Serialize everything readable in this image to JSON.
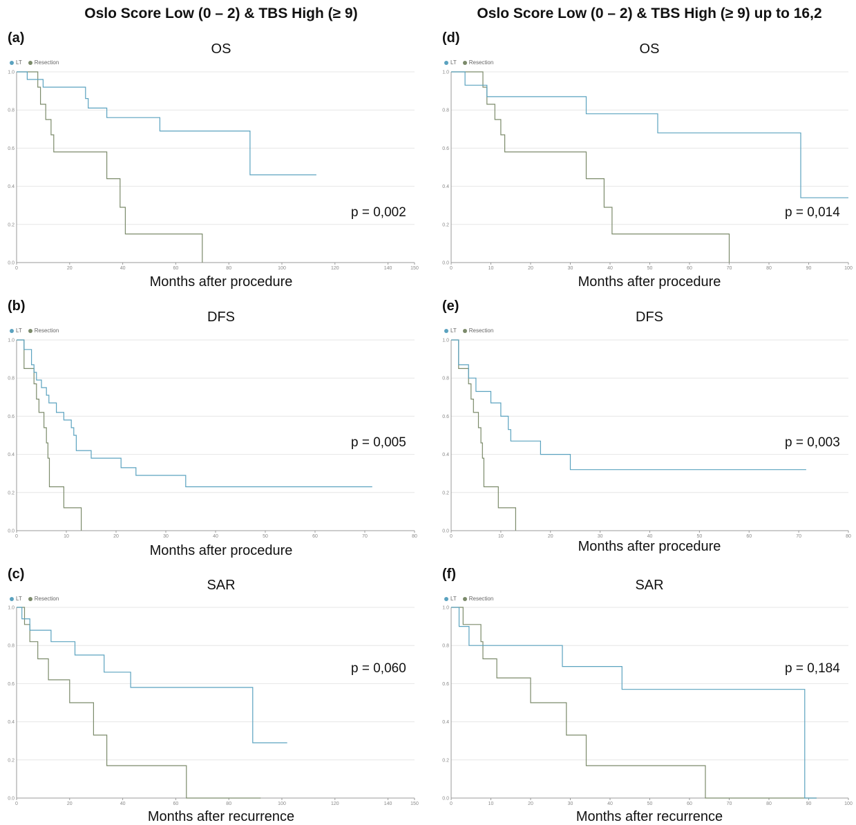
{
  "column_titles": [
    "Oslo Score Low (0 – 2) & TBS High (≥ 9)",
    "Oslo Score Low (0 – 2) & TBS High (≥ 9) up to 16,2"
  ],
  "legend": {
    "lt": "LT",
    "resection": "Resection"
  },
  "colors": {
    "lt": "#5aa2bf",
    "resection": "#7b8a6a",
    "grid": "#e6e6e6",
    "axis": "#999999"
  },
  "chart_data": [
    {
      "panel": "(a)",
      "title": "OS",
      "type": "line",
      "xlabel": "Months after procedure",
      "p_value": "p = 0,002",
      "xlim": [
        0,
        150
      ],
      "ylim": [
        0,
        1
      ],
      "xticks": [
        0,
        20,
        40,
        60,
        80,
        100,
        120,
        140,
        150
      ],
      "yticks": [
        0.0,
        0.2,
        0.4,
        0.6,
        0.8,
        1.0
      ],
      "series": [
        {
          "name": "LT",
          "steps": [
            [
              0,
              1.0
            ],
            [
              4,
              0.96
            ],
            [
              10,
              0.92
            ],
            [
              26,
              0.86
            ],
            [
              27,
              0.81
            ],
            [
              34,
              0.76
            ],
            [
              54,
              0.69
            ],
            [
              88,
              0.46
            ],
            [
              113,
              0.46
            ]
          ]
        },
        {
          "name": "Resection",
          "steps": [
            [
              0,
              1.0
            ],
            [
              8,
              0.92
            ],
            [
              9,
              0.83
            ],
            [
              11,
              0.75
            ],
            [
              13,
              0.67
            ],
            [
              14,
              0.58
            ],
            [
              34,
              0.44
            ],
            [
              39,
              0.29
            ],
            [
              41,
              0.15
            ],
            [
              70,
              0.0
            ]
          ]
        }
      ]
    },
    {
      "panel": "(b)",
      "title": "DFS",
      "type": "line",
      "xlabel": "Months after procedure",
      "p_value": "p = 0,005",
      "xlim": [
        0,
        80
      ],
      "ylim": [
        0,
        1
      ],
      "xticks": [
        0,
        10,
        20,
        30,
        40,
        50,
        60,
        70,
        80
      ],
      "yticks": [
        0.0,
        0.2,
        0.4,
        0.6,
        0.8,
        1.0
      ],
      "series": [
        {
          "name": "LT",
          "steps": [
            [
              0,
              1.0
            ],
            [
              1.5,
              0.95
            ],
            [
              3,
              0.87
            ],
            [
              3.5,
              0.83
            ],
            [
              4,
              0.79
            ],
            [
              5,
              0.75
            ],
            [
              6,
              0.71
            ],
            [
              6.5,
              0.67
            ],
            [
              8,
              0.62
            ],
            [
              9.5,
              0.58
            ],
            [
              11,
              0.54
            ],
            [
              11.5,
              0.5
            ],
            [
              12,
              0.42
            ],
            [
              15,
              0.38
            ],
            [
              21,
              0.33
            ],
            [
              24,
              0.29
            ],
            [
              34,
              0.23
            ],
            [
              71.5,
              0.23
            ]
          ]
        },
        {
          "name": "Resection",
          "steps": [
            [
              0,
              1.0
            ],
            [
              1.5,
              0.85
            ],
            [
              3.5,
              0.77
            ],
            [
              4,
              0.69
            ],
            [
              4.5,
              0.62
            ],
            [
              5.5,
              0.54
            ],
            [
              6,
              0.46
            ],
            [
              6.3,
              0.38
            ],
            [
              6.6,
              0.23
            ],
            [
              9.5,
              0.12
            ],
            [
              13,
              0.0
            ]
          ]
        }
      ]
    },
    {
      "panel": "(c)",
      "title": "SAR",
      "type": "line",
      "xlabel": "Months after recurrence",
      "p_value": "p = 0,060",
      "xlim": [
        0,
        150
      ],
      "ylim": [
        0,
        1
      ],
      "xticks": [
        0,
        20,
        40,
        60,
        80,
        100,
        120,
        140,
        150
      ],
      "yticks": [
        0.0,
        0.2,
        0.4,
        0.6,
        0.8,
        1.0
      ],
      "series": [
        {
          "name": "LT",
          "steps": [
            [
              0,
              1.0
            ],
            [
              2,
              0.94
            ],
            [
              5,
              0.88
            ],
            [
              13,
              0.82
            ],
            [
              22,
              0.75
            ],
            [
              33,
              0.66
            ],
            [
              43,
              0.58
            ],
            [
              89,
              0.29
            ],
            [
              102,
              0.29
            ]
          ]
        },
        {
          "name": "Resection",
          "steps": [
            [
              0,
              1.0
            ],
            [
              3,
              0.91
            ],
            [
              5,
              0.82
            ],
            [
              8,
              0.73
            ],
            [
              12,
              0.62
            ],
            [
              20,
              0.5
            ],
            [
              29,
              0.33
            ],
            [
              34,
              0.17
            ],
            [
              64,
              0.0
            ],
            [
              92,
              0.0
            ]
          ]
        }
      ]
    },
    {
      "panel": "(d)",
      "title": "OS",
      "type": "line",
      "xlabel": "Months after procedure",
      "p_value": "p = 0,014",
      "xlim": [
        0,
        100
      ],
      "ylim": [
        0,
        1
      ],
      "xticks": [
        0,
        10,
        20,
        30,
        40,
        50,
        60,
        70,
        80,
        90,
        100
      ],
      "yticks": [
        0.0,
        0.2,
        0.4,
        0.6,
        0.8,
        1.0
      ],
      "series": [
        {
          "name": "LT",
          "steps": [
            [
              0,
              1.0
            ],
            [
              3.5,
              0.93
            ],
            [
              9,
              0.87
            ],
            [
              34,
              0.78
            ],
            [
              52,
              0.68
            ],
            [
              88,
              0.34
            ],
            [
              100,
              0.34
            ]
          ]
        },
        {
          "name": "Resection",
          "steps": [
            [
              0,
              1.0
            ],
            [
              8,
              0.92
            ],
            [
              9,
              0.83
            ],
            [
              11,
              0.75
            ],
            [
              12.5,
              0.67
            ],
            [
              13.5,
              0.58
            ],
            [
              34,
              0.44
            ],
            [
              38.5,
              0.29
            ],
            [
              40.5,
              0.15
            ],
            [
              70,
              0.0
            ]
          ]
        }
      ]
    },
    {
      "panel": "(e)",
      "title": "DFS",
      "type": "line",
      "xlabel": "Months after procedure",
      "p_value": "p = 0,003",
      "xlim": [
        0,
        80
      ],
      "ylim": [
        0,
        1
      ],
      "xticks": [
        0,
        10,
        20,
        30,
        40,
        50,
        60,
        70,
        80
      ],
      "yticks": [
        0.0,
        0.2,
        0.4,
        0.6,
        0.8,
        1.0
      ],
      "series": [
        {
          "name": "LT",
          "steps": [
            [
              0,
              1.0
            ],
            [
              1.5,
              0.87
            ],
            [
              3.5,
              0.8
            ],
            [
              5,
              0.73
            ],
            [
              8,
              0.67
            ],
            [
              10,
              0.6
            ],
            [
              11.5,
              0.53
            ],
            [
              12,
              0.47
            ],
            [
              18,
              0.4
            ],
            [
              24,
              0.32
            ],
            [
              71.5,
              0.32
            ]
          ]
        },
        {
          "name": "Resection",
          "steps": [
            [
              0,
              1.0
            ],
            [
              1.5,
              0.85
            ],
            [
              3.5,
              0.77
            ],
            [
              4,
              0.69
            ],
            [
              4.5,
              0.62
            ],
            [
              5.5,
              0.54
            ],
            [
              6,
              0.46
            ],
            [
              6.3,
              0.38
            ],
            [
              6.6,
              0.23
            ],
            [
              9.5,
              0.12
            ],
            [
              13,
              0.0
            ]
          ]
        }
      ]
    },
    {
      "panel": "(f)",
      "title": "SAR",
      "type": "line",
      "xlabel": "Months after recurrence",
      "p_value": "p = 0,184",
      "xlim": [
        0,
        100
      ],
      "ylim": [
        0,
        1
      ],
      "xticks": [
        0,
        10,
        20,
        30,
        40,
        50,
        60,
        70,
        80,
        90,
        100
      ],
      "yticks": [
        0.0,
        0.2,
        0.4,
        0.6,
        0.8,
        1.0
      ],
      "series": [
        {
          "name": "LT",
          "steps": [
            [
              0,
              1.0
            ],
            [
              2,
              0.9
            ],
            [
              4.5,
              0.8
            ],
            [
              28,
              0.69
            ],
            [
              43,
              0.57
            ],
            [
              89,
              0.0
            ],
            [
              92,
              0.0
            ]
          ]
        },
        {
          "name": "Resection",
          "steps": [
            [
              0,
              1.0
            ],
            [
              3,
              0.91
            ],
            [
              7.5,
              0.82
            ],
            [
              8,
              0.73
            ],
            [
              11.5,
              0.63
            ],
            [
              20,
              0.5
            ],
            [
              29,
              0.33
            ],
            [
              34,
              0.17
            ],
            [
              64,
              0.0
            ],
            [
              92,
              0.0
            ]
          ]
        }
      ]
    }
  ]
}
